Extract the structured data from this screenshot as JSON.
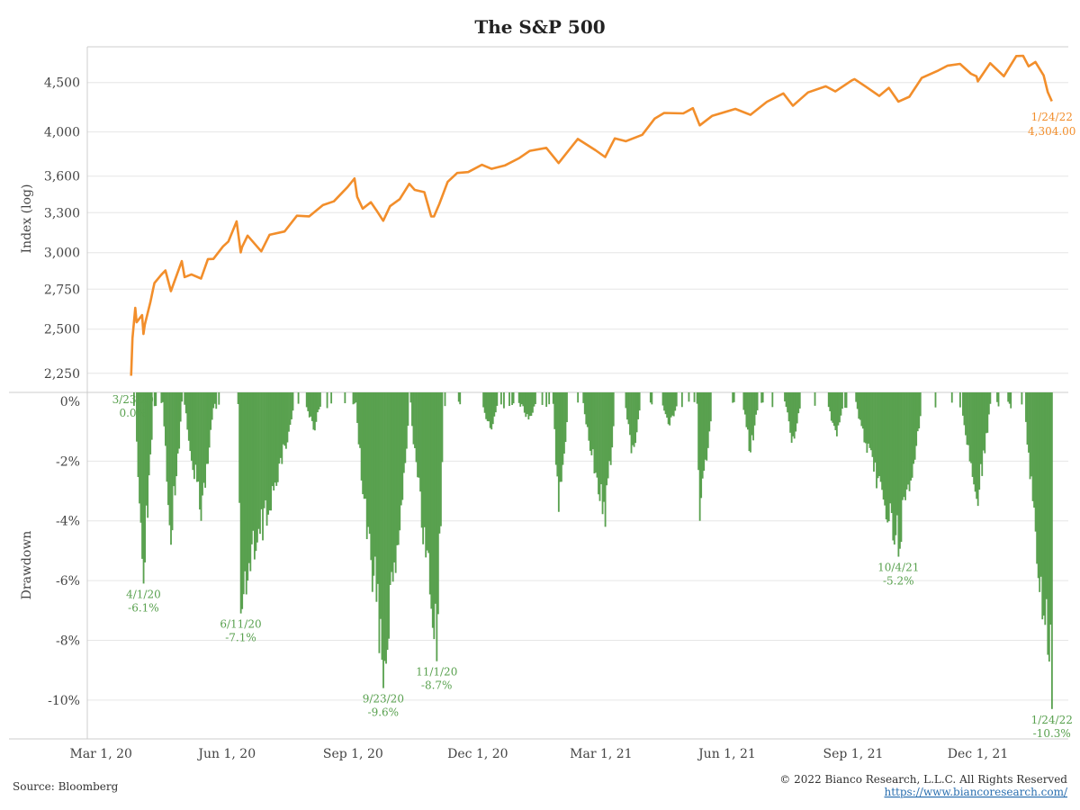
{
  "chart_data": {
    "title": "The S&P 500",
    "colors": {
      "price_line": "#f28e2b",
      "drawdown_bars": "#59a14f",
      "gridline": "#e6e6e6",
      "axis": "#cccccc"
    },
    "x_axis": {
      "tick_labels": [
        "Mar 1, 20",
        "Jun 1, 20",
        "Sep 1, 20",
        "Dec 1, 20",
        "Mar 1, 21",
        "Jun 1, 21",
        "Sep 1, 21",
        "Dec 1, 21"
      ],
      "tick_dates": [
        "2020-03-01",
        "2020-06-01",
        "2020-09-01",
        "2020-12-01",
        "2021-03-01",
        "2021-06-01",
        "2021-09-01",
        "2021-12-01"
      ],
      "range": [
        "2020-02-20",
        "2022-02-05"
      ]
    },
    "price_panel": {
      "type": "line",
      "ylabel": "Index (log)",
      "scale": "log",
      "ylim": [
        2150,
        4900
      ],
      "y_ticks": [
        2250,
        2500,
        2750,
        3000,
        3300,
        3600,
        4000,
        4500
      ],
      "y_tick_labels": [
        "2,250",
        "2,500",
        "2,750",
        "3,000",
        "3,300",
        "3,600",
        "4,000",
        "4,500"
      ],
      "series": {
        "x": [
          "2020-03-23",
          "2020-03-24",
          "2020-03-26",
          "2020-03-27",
          "2020-03-31",
          "2020-04-01",
          "2020-04-02",
          "2020-04-06",
          "2020-04-08",
          "2020-04-09",
          "2020-04-14",
          "2020-04-17",
          "2020-04-21",
          "2020-04-29",
          "2020-05-01",
          "2020-05-06",
          "2020-05-13",
          "2020-05-18",
          "2020-05-22",
          "2020-05-29",
          "2020-06-02",
          "2020-06-08",
          "2020-06-11",
          "2020-06-12",
          "2020-06-16",
          "2020-06-26",
          "2020-07-02",
          "2020-07-13",
          "2020-07-22",
          "2020-07-31",
          "2020-08-10",
          "2020-08-18",
          "2020-08-28",
          "2020-09-02",
          "2020-09-04",
          "2020-09-08",
          "2020-09-14",
          "2020-09-18",
          "2020-09-23",
          "2020-09-28",
          "2020-10-05",
          "2020-10-12",
          "2020-10-16",
          "2020-10-23",
          "2020-10-28",
          "2020-10-30",
          "2020-11-03",
          "2020-11-09",
          "2020-11-16",
          "2020-11-24",
          "2020-12-04",
          "2020-12-11",
          "2020-12-21",
          "2020-12-31",
          "2021-01-08",
          "2021-01-20",
          "2021-01-29",
          "2021-02-12",
          "2021-02-25",
          "2021-03-04",
          "2021-03-11",
          "2021-03-19",
          "2021-03-31",
          "2021-04-09",
          "2021-04-16",
          "2021-04-30",
          "2021-05-07",
          "2021-05-12",
          "2021-05-21",
          "2021-06-07",
          "2021-06-18",
          "2021-06-30",
          "2021-07-12",
          "2021-07-19",
          "2021-07-30",
          "2021-08-12",
          "2021-08-19",
          "2021-08-31",
          "2021-09-02",
          "2021-09-10",
          "2021-09-20",
          "2021-09-27",
          "2021-10-04",
          "2021-10-12",
          "2021-10-21",
          "2021-11-02",
          "2021-11-09",
          "2021-11-18",
          "2021-11-26",
          "2021-11-30",
          "2021-12-01",
          "2021-12-10",
          "2021-12-20",
          "2021-12-29",
          "2022-01-03",
          "2022-01-07",
          "2022-01-12",
          "2022-01-18",
          "2022-01-21",
          "2022-01-24"
        ],
        "y": [
          2237,
          2447,
          2630,
          2541,
          2585,
          2471,
          2527,
          2664,
          2750,
          2790,
          2846,
          2875,
          2737,
          2940,
          2830,
          2848,
          2820,
          2954,
          2955,
          3044,
          3081,
          3232,
          3002,
          3041,
          3124,
          3009,
          3130,
          3155,
          3276,
          3271,
          3360,
          3390,
          3508,
          3580,
          3427,
          3332,
          3383,
          3319,
          3237,
          3351,
          3408,
          3534,
          3484,
          3465,
          3271,
          3270,
          3370,
          3551,
          3627,
          3635,
          3699,
          3663,
          3694,
          3756,
          3824,
          3851,
          3714,
          3934,
          3829,
          3768,
          3939,
          3913,
          3973,
          4128,
          4185,
          4181,
          4233,
          4063,
          4156,
          4226,
          4166,
          4298,
          4385,
          4258,
          4395,
          4460,
          4405,
          4523,
          4537,
          4458,
          4358,
          4443,
          4300,
          4350,
          4549,
          4630,
          4685,
          4704,
          4595,
          4567,
          4513,
          4712,
          4568,
          4793,
          4796,
          4677,
          4726,
          4577,
          4398,
          4304
        ]
      },
      "annotation": {
        "date": "1/24/22",
        "value": "4,304.00"
      }
    },
    "drawdown_panel": {
      "type": "bar",
      "ylabel": "Drawdown",
      "ylim": [
        -11.3,
        0.3
      ],
      "y_ticks": [
        0,
        -2,
        -4,
        -6,
        -8,
        -10
      ],
      "y_tick_labels": [
        "0%",
        "-2%",
        "-4%",
        "-6%",
        "-8%",
        "-10%"
      ],
      "episodes": [
        {
          "start": "2020-03-23",
          "trough": "2020-03-23",
          "end": "2020-03-24",
          "depth": 0.0
        },
        {
          "start": "2020-03-26",
          "trough": "2020-04-01",
          "end": "2020-04-08",
          "depth": -6.1
        },
        {
          "start": "2020-04-15",
          "trough": "2020-04-21",
          "end": "2020-04-29",
          "depth": -4.8
        },
        {
          "start": "2020-05-01",
          "trough": "2020-05-13",
          "end": "2020-05-22",
          "depth": -4.0
        },
        {
          "start": "2020-06-09",
          "trough": "2020-06-11",
          "end": "2020-07-20",
          "depth": -7.1
        },
        {
          "start": "2020-09-03",
          "trough": "2020-09-23",
          "end": "2020-10-12",
          "depth": -9.6
        },
        {
          "start": "2020-10-13",
          "trough": "2020-11-01",
          "end": "2020-11-06",
          "depth": -8.7
        },
        {
          "start": "2021-01-25",
          "trough": "2021-01-29",
          "end": "2021-02-05",
          "depth": -3.7
        },
        {
          "start": "2021-02-16",
          "trough": "2021-03-04",
          "end": "2021-03-11",
          "depth": -4.2
        },
        {
          "start": "2021-05-10",
          "trough": "2021-05-12",
          "end": "2021-05-21",
          "depth": -4.0
        },
        {
          "start": "2021-09-03",
          "trough": "2021-10-04",
          "end": "2021-10-21",
          "depth": -5.2
        },
        {
          "start": "2021-11-19",
          "trough": "2021-12-01",
          "end": "2021-12-10",
          "depth": -3.5
        },
        {
          "start": "2022-01-04",
          "trough": "2022-01-24",
          "end": "2022-01-24",
          "depth": -10.3
        }
      ],
      "minor_dips": [
        {
          "date": "2020-06-26",
          "depth": -3.2
        },
        {
          "date": "2020-08-03",
          "depth": -1.2
        },
        {
          "date": "2020-12-10",
          "depth": -1.3
        },
        {
          "date": "2021-01-07",
          "depth": -0.8
        },
        {
          "date": "2021-03-24",
          "depth": -2.1
        },
        {
          "date": "2021-04-20",
          "depth": -1.0
        },
        {
          "date": "2021-06-18",
          "depth": -2.0
        },
        {
          "date": "2021-07-19",
          "depth": -1.8
        },
        {
          "date": "2021-08-19",
          "depth": -1.5
        },
        {
          "date": "2022-01-13",
          "depth": -2.0
        }
      ],
      "annotations": [
        {
          "date": "3/23/20",
          "value": "0.0%",
          "x": "2020-03-23",
          "y": 0.0,
          "anchor": "end"
        },
        {
          "date": "4/1/20",
          "value": "-6.1%",
          "x": "2020-04-01",
          "y": -6.1
        },
        {
          "date": "6/11/20",
          "value": "-7.1%",
          "x": "2020-06-11",
          "y": -7.1
        },
        {
          "date": "9/23/20",
          "value": "-9.6%",
          "x": "2020-09-23",
          "y": -9.6
        },
        {
          "date": "11/1/20",
          "value": "-8.7%",
          "x": "2020-11-01",
          "y": -8.7
        },
        {
          "date": "10/4/21",
          "value": "-5.2%",
          "x": "2021-10-04",
          "y": -5.2
        },
        {
          "date": "1/24/22",
          "value": "-10.3%",
          "x": "2022-01-24",
          "y": -10.3
        }
      ]
    }
  },
  "footer": {
    "source": "Source: Bloomberg",
    "copyright": "© 2022 Bianco Research, L.L.C. All Rights Reserved",
    "url": "https://www.biancoresearch.com/"
  }
}
